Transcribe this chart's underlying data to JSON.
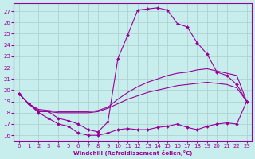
{
  "xlabel": "Windchill (Refroidissement éolien,°C)",
  "background_color": "#c8eded",
  "line_color": "#990099",
  "grid_color": "#aacccc",
  "hours": [
    0,
    1,
    2,
    3,
    4,
    5,
    6,
    7,
    8,
    9,
    10,
    11,
    12,
    13,
    14,
    15,
    16,
    17,
    18,
    19,
    20,
    21,
    22,
    23
  ],
  "line_spike": [
    19.7,
    18.8,
    18.1,
    18.1,
    17.5,
    17.3,
    17.0,
    16.5,
    16.3,
    17.2,
    22.8,
    24.9,
    27.1,
    27.2,
    27.3,
    27.1,
    25.9,
    25.6,
    24.2,
    23.2,
    21.6,
    21.3,
    20.5,
    19.0
  ],
  "line_min": [
    19.7,
    18.8,
    18.0,
    17.5,
    17.0,
    16.8,
    16.2,
    16.0,
    16.0,
    16.2,
    16.5,
    16.6,
    16.5,
    16.5,
    16.7,
    16.8,
    17.0,
    16.7,
    16.5,
    16.8,
    17.0,
    17.1,
    17.0,
    19.0
  ],
  "line_mid_hi": [
    19.7,
    18.8,
    18.3,
    18.2,
    18.1,
    18.1,
    18.1,
    18.1,
    18.2,
    18.5,
    19.2,
    19.8,
    20.3,
    20.7,
    21.0,
    21.3,
    21.5,
    21.6,
    21.8,
    21.9,
    21.7,
    21.5,
    21.3,
    19.0
  ],
  "line_mid": [
    19.7,
    18.8,
    18.2,
    18.1,
    18.0,
    18.0,
    18.0,
    18.0,
    18.1,
    18.4,
    18.8,
    19.2,
    19.5,
    19.8,
    20.0,
    20.2,
    20.4,
    20.5,
    20.6,
    20.7,
    20.6,
    20.5,
    20.2,
    19.0
  ],
  "ylim": [
    15.5,
    27.7
  ],
  "yticks": [
    16,
    17,
    18,
    19,
    20,
    21,
    22,
    23,
    24,
    25,
    26,
    27
  ],
  "xlim": [
    -0.5,
    23.5
  ],
  "xticks": [
    0,
    1,
    2,
    3,
    4,
    5,
    6,
    7,
    8,
    9,
    10,
    11,
    12,
    13,
    14,
    15,
    16,
    17,
    18,
    19,
    20,
    21,
    22,
    23
  ],
  "figsize": [
    3.2,
    2.0
  ],
  "dpi": 100
}
